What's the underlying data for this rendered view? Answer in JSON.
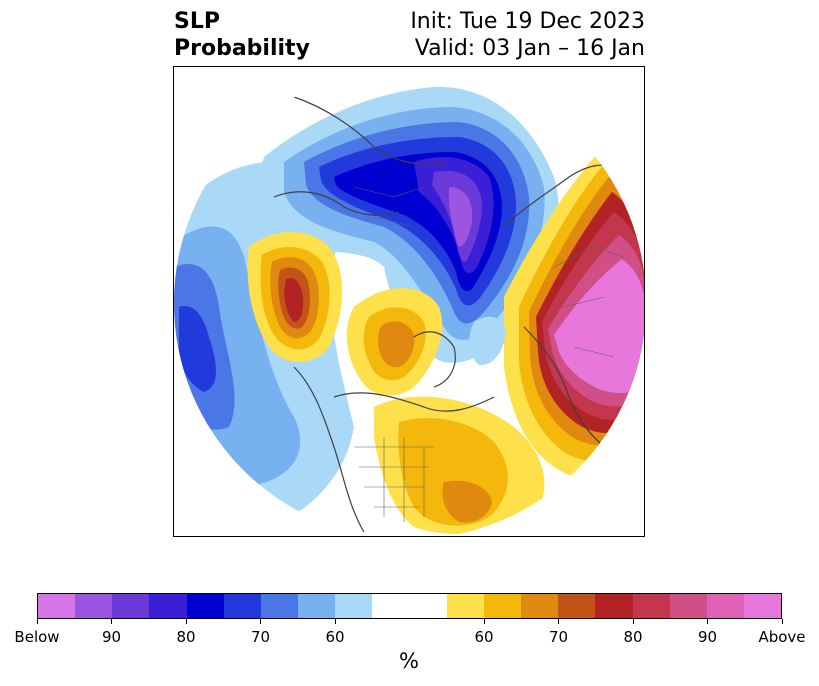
{
  "title": {
    "left_line1": "SLP",
    "left_line2": "Probability",
    "right_line1": "Init: Tue 19 Dec 2023",
    "right_line2": "Valid: 03 Jan – 16 Jan"
  },
  "map": {
    "projection": "north-polar-stereographic",
    "variable": "sea level pressure tercile probability",
    "features": [
      "coastlines",
      "country-borders",
      "us-state-borders"
    ]
  },
  "colorbar": {
    "colors": [
      "#d675e6",
      "#9c55e0",
      "#6a39d8",
      "#3a1fd6",
      "#0000d0",
      "#2239dc",
      "#4a76e6",
      "#77b1f0",
      "#aad9f8",
      "#ffffff",
      "#ffffff",
      "#fde04a",
      "#f4b80c",
      "#e08910",
      "#c35417",
      "#b32225",
      "#c2364e",
      "#d04f86",
      "#de62b6",
      "#e877dc"
    ],
    "tick_labels": [
      "Below",
      "90",
      "80",
      "70",
      "60",
      "60",
      "70",
      "80",
      "90",
      "Above"
    ],
    "unit": "%"
  }
}
